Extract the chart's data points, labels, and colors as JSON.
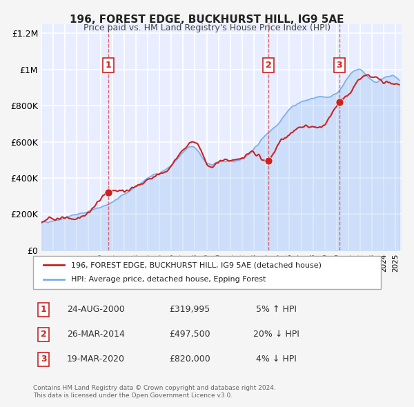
{
  "title": "196, FOREST EDGE, BUCKHURST HILL, IG9 5AE",
  "subtitle": "Price paid vs. HM Land Registry's House Price Index (HPI)",
  "xlabel": "",
  "ylabel": "",
  "ylim": [
    0,
    1250000
  ],
  "xlim_start": 1995.0,
  "xlim_end": 2025.5,
  "background_color": "#f0f4ff",
  "plot_bg_color": "#e8eeff",
  "grid_color": "#ffffff",
  "hpi_line_color": "#7ab0e8",
  "price_line_color": "#cc2222",
  "sale_dot_color": "#cc2222",
  "dashed_line_color": "#dd4444",
  "legend_box_color": "#f8f8f8",
  "legend1": "196, FOREST EDGE, BUCKHURST HILL, IG9 5AE (detached house)",
  "legend2": "HPI: Average price, detached house, Epping Forest",
  "sales": [
    {
      "num": 1,
      "year": 2000.65,
      "price": 319995,
      "label": "24-AUG-2000",
      "price_str": "£319,995",
      "pct": "5%",
      "dir": "↑"
    },
    {
      "num": 2,
      "year": 2014.23,
      "price": 497500,
      "label": "26-MAR-2014",
      "price_str": "£497,500",
      "pct": "20%",
      "dir": "↓"
    },
    {
      "num": 3,
      "year": 2020.22,
      "price": 820000,
      "label": "19-MAR-2020",
      "price_str": "£820,000",
      "pct": "4%",
      "dir": "↓"
    }
  ],
  "footer1": "Contains HM Land Registry data © Crown copyright and database right 2024.",
  "footer2": "This data is licensed under the Open Government Licence v3.0.",
  "ytick_labels": [
    "£0",
    "£200K",
    "£400K",
    "£600K",
    "£800K",
    "£1M",
    "£1.2M"
  ],
  "ytick_values": [
    0,
    200000,
    400000,
    600000,
    800000,
    1000000,
    1200000
  ]
}
